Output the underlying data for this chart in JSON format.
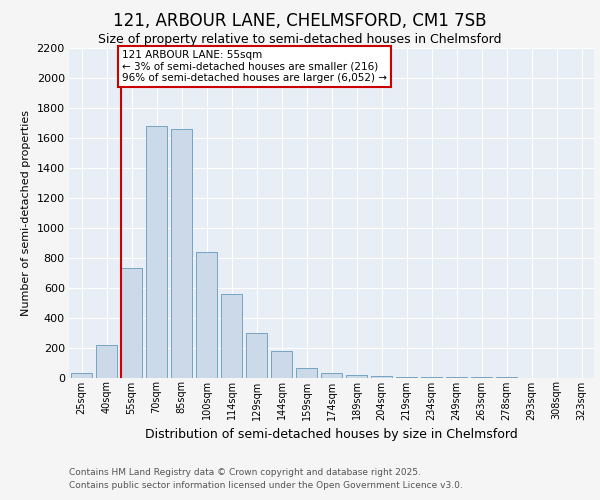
{
  "title1": "121, ARBOUR LANE, CHELMSFORD, CM1 7SB",
  "title2": "Size of property relative to semi-detached houses in Chelmsford",
  "xlabel": "Distribution of semi-detached houses by size in Chelmsford",
  "ylabel": "Number of semi-detached properties",
  "categories": [
    "25sqm",
    "40sqm",
    "55sqm",
    "70sqm",
    "85sqm",
    "100sqm",
    "114sqm",
    "129sqm",
    "144sqm",
    "159sqm",
    "174sqm",
    "189sqm",
    "204sqm",
    "219sqm",
    "234sqm",
    "249sqm",
    "263sqm",
    "278sqm",
    "293sqm",
    "308sqm",
    "323sqm"
  ],
  "values": [
    30,
    220,
    730,
    1680,
    1660,
    840,
    560,
    295,
    180,
    65,
    30,
    20,
    10,
    5,
    3,
    2,
    1,
    1,
    0,
    0,
    0
  ],
  "bar_color": "#ccd9e8",
  "bar_edge_color": "#6699bb",
  "highlight_bar_index": 2,
  "highlight_line_color": "#cc0000",
  "annotation_text": "121 ARBOUR LANE: 55sqm\n← 3% of semi-detached houses are smaller (216)\n96% of semi-detached houses are larger (6,052) →",
  "annotation_box_color": "#cc0000",
  "ylim": [
    0,
    2200
  ],
  "yticks": [
    0,
    200,
    400,
    600,
    800,
    1000,
    1200,
    1400,
    1600,
    1800,
    2000,
    2200
  ],
  "footer1": "Contains HM Land Registry data © Crown copyright and database right 2025.",
  "footer2": "Contains public sector information licensed under the Open Government Licence v3.0.",
  "fig_bg_color": "#f5f5f5",
  "plot_bg_color": "#e8eef5",
  "grid_color": "#ffffff",
  "title1_fontsize": 12,
  "title2_fontsize": 9,
  "xlabel_fontsize": 9,
  "ylabel_fontsize": 8,
  "tick_fontsize": 8,
  "xtick_fontsize": 7,
  "footer_fontsize": 6.5
}
